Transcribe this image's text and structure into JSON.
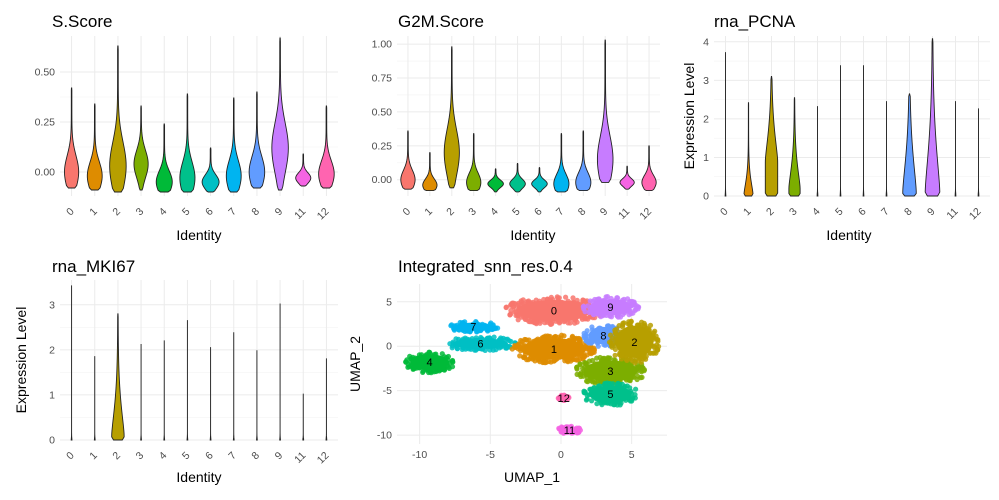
{
  "colors": {
    "0": "#F8766D",
    "1": "#DE8C00",
    "2": "#B79F00",
    "3": "#7CAE00",
    "4": "#00BA38",
    "5": "#00C08B",
    "6": "#00BFC4",
    "7": "#00B4F0",
    "8": "#619CFF",
    "9": "#C77CFF",
    "11": "#F564E3",
    "12": "#FF64B0"
  },
  "chart_data": [
    {
      "type": "violin",
      "title": "S.Score",
      "xlabel": "Identity",
      "ylabel": "",
      "categories": [
        "0",
        "1",
        "2",
        "3",
        "4",
        "5",
        "6",
        "7",
        "8",
        "9",
        "11",
        "12"
      ],
      "yticks": [
        "0.00",
        "0.25",
        "0.50"
      ],
      "ytick_values": [
        0,
        0.25,
        0.5
      ],
      "ylim": [
        -0.12,
        0.68
      ],
      "series": [
        {
          "cat": "0",
          "min": -0.08,
          "max": 0.42,
          "mode": 0.0,
          "width": 0.62
        },
        {
          "cat": "1",
          "min": -0.09,
          "max": 0.34,
          "mode": -0.02,
          "width": 0.65
        },
        {
          "cat": "2",
          "min": -0.1,
          "max": 0.63,
          "mode": 0.03,
          "width": 0.72
        },
        {
          "cat": "3",
          "min": -0.09,
          "max": 0.33,
          "mode": 0.04,
          "width": 0.62
        },
        {
          "cat": "4",
          "min": -0.1,
          "max": 0.24,
          "mode": -0.05,
          "width": 0.7
        },
        {
          "cat": "5",
          "min": -0.1,
          "max": 0.39,
          "mode": -0.03,
          "width": 0.66
        },
        {
          "cat": "6",
          "min": -0.1,
          "max": 0.12,
          "mode": -0.05,
          "width": 0.74
        },
        {
          "cat": "7",
          "min": -0.1,
          "max": 0.37,
          "mode": -0.02,
          "width": 0.65
        },
        {
          "cat": "8",
          "min": -0.08,
          "max": 0.4,
          "mode": 0.0,
          "width": 0.68
        },
        {
          "cat": "9",
          "min": -0.09,
          "max": 0.67,
          "mode": 0.12,
          "width": 0.72
        },
        {
          "cat": "11",
          "min": -0.07,
          "max": 0.09,
          "mode": -0.03,
          "width": 0.66
        },
        {
          "cat": "12",
          "min": -0.08,
          "max": 0.33,
          "mode": -0.01,
          "width": 0.68
        }
      ]
    },
    {
      "type": "violin",
      "title": "G2M.Score",
      "xlabel": "Identity",
      "ylabel": "",
      "categories": [
        "0",
        "1",
        "2",
        "3",
        "4",
        "5",
        "6",
        "7",
        "8",
        "9",
        "11",
        "12"
      ],
      "yticks": [
        "0.00",
        "0.25",
        "0.50",
        "0.75",
        "1.00"
      ],
      "ytick_values": [
        0,
        0.25,
        0.5,
        0.75,
        1.0
      ],
      "ylim": [
        -0.12,
        1.06
      ],
      "series": [
        {
          "cat": "0",
          "min": -0.07,
          "max": 0.36,
          "mode": 0.0,
          "width": 0.66
        },
        {
          "cat": "1",
          "min": -0.08,
          "max": 0.2,
          "mode": -0.04,
          "width": 0.66
        },
        {
          "cat": "2",
          "min": -0.06,
          "max": 0.98,
          "mode": 0.2,
          "width": 0.7
        },
        {
          "cat": "3",
          "min": -0.08,
          "max": 0.34,
          "mode": -0.02,
          "width": 0.66
        },
        {
          "cat": "4",
          "min": -0.09,
          "max": 0.08,
          "mode": -0.03,
          "width": 0.72
        },
        {
          "cat": "5",
          "min": -0.09,
          "max": 0.12,
          "mode": -0.03,
          "width": 0.72
        },
        {
          "cat": "6",
          "min": -0.09,
          "max": 0.09,
          "mode": -0.03,
          "width": 0.72
        },
        {
          "cat": "7",
          "min": -0.09,
          "max": 0.34,
          "mode": -0.03,
          "width": 0.7
        },
        {
          "cat": "8",
          "min": -0.08,
          "max": 0.36,
          "mode": -0.02,
          "width": 0.7
        },
        {
          "cat": "9",
          "min": -0.02,
          "max": 1.03,
          "mode": 0.15,
          "width": 0.72
        },
        {
          "cat": "11",
          "min": -0.07,
          "max": 0.1,
          "mode": -0.02,
          "width": 0.66
        },
        {
          "cat": "12",
          "min": -0.08,
          "max": 0.25,
          "mode": -0.02,
          "width": 0.66
        }
      ]
    },
    {
      "type": "violin",
      "title": "rna_PCNA",
      "xlabel": "Identity",
      "ylabel": "Expression Level",
      "categories": [
        "0",
        "1",
        "2",
        "3",
        "4",
        "5",
        "6",
        "7",
        "8",
        "9",
        "11",
        "12"
      ],
      "yticks": [
        "0",
        "1",
        "2",
        "3",
        "4"
      ],
      "ytick_values": [
        0,
        1,
        2,
        3,
        4
      ],
      "ylim": [
        0,
        4.15
      ],
      "series": [
        {
          "cat": "0",
          "min": 0,
          "max": 3.72,
          "mode": 0,
          "width": 0.05,
          "spread": 0.08
        },
        {
          "cat": "1",
          "min": 0,
          "max": 2.42,
          "mode": 0.05,
          "width": 0.4,
          "spread": 0.5
        },
        {
          "cat": "2",
          "min": 0,
          "max": 3.1,
          "mode": 0.9,
          "width": 0.55,
          "spread": 1.0
        },
        {
          "cat": "3",
          "min": 0,
          "max": 2.55,
          "mode": 0.2,
          "width": 0.5,
          "spread": 0.8
        },
        {
          "cat": "4",
          "min": 0,
          "max": 2.32,
          "mode": 0,
          "width": 0.05,
          "spread": 0.08
        },
        {
          "cat": "5",
          "min": 0,
          "max": 3.38,
          "mode": 0,
          "width": 0.05,
          "spread": 0.08
        },
        {
          "cat": "6",
          "min": 0,
          "max": 3.38,
          "mode": 0,
          "width": 0.05,
          "spread": 0.08
        },
        {
          "cat": "7",
          "min": 0,
          "max": 2.45,
          "mode": 0,
          "width": 0.05,
          "spread": 0.08
        },
        {
          "cat": "8",
          "min": 0,
          "max": 2.65,
          "mode": 0.1,
          "width": 0.6,
          "spread": 1.3
        },
        {
          "cat": "9",
          "min": 0,
          "max": 4.08,
          "mode": 0.1,
          "width": 0.65,
          "spread": 1.6
        },
        {
          "cat": "11",
          "min": 0,
          "max": 2.45,
          "mode": 0,
          "width": 0.05,
          "spread": 0.08
        },
        {
          "cat": "12",
          "min": 0,
          "max": 2.26,
          "mode": 0,
          "width": 0.05,
          "spread": 0.08
        }
      ]
    },
    {
      "type": "violin",
      "title": "rna_MKI67",
      "xlabel": "Identity",
      "ylabel": "Expression Level",
      "categories": [
        "0",
        "1",
        "2",
        "3",
        "4",
        "5",
        "6",
        "7",
        "8",
        "9",
        "11",
        "12"
      ],
      "yticks": [
        "0",
        "1",
        "2",
        "3"
      ],
      "ytick_values": [
        0,
        1,
        2,
        3
      ],
      "ylim": [
        0,
        3.55
      ],
      "series": [
        {
          "cat": "0",
          "min": 0,
          "max": 3.42,
          "mode": 0,
          "width": 0.05,
          "spread": 0.05
        },
        {
          "cat": "1",
          "min": 0,
          "max": 1.85,
          "mode": 0,
          "width": 0.05,
          "spread": 0.05
        },
        {
          "cat": "2",
          "min": 0,
          "max": 2.8,
          "mode": 0.1,
          "width": 0.55,
          "spread": 0.9
        },
        {
          "cat": "3",
          "min": 0,
          "max": 2.12,
          "mode": 0,
          "width": 0.05,
          "spread": 0.05
        },
        {
          "cat": "4",
          "min": 0,
          "max": 2.2,
          "mode": 0,
          "width": 0.05,
          "spread": 0.05
        },
        {
          "cat": "5",
          "min": 0,
          "max": 2.65,
          "mode": 0,
          "width": 0.05,
          "spread": 0.05
        },
        {
          "cat": "6",
          "min": 0,
          "max": 2.05,
          "mode": 0,
          "width": 0.05,
          "spread": 0.05
        },
        {
          "cat": "7",
          "min": 0,
          "max": 2.38,
          "mode": 0,
          "width": 0.05,
          "spread": 0.05
        },
        {
          "cat": "8",
          "min": 0,
          "max": 1.98,
          "mode": 0,
          "width": 0.05,
          "spread": 0.05
        },
        {
          "cat": "9",
          "min": 0,
          "max": 3.02,
          "mode": 0,
          "width": 0.05,
          "spread": 0.05
        },
        {
          "cat": "11",
          "min": 0,
          "max": 1.02,
          "mode": 0,
          "width": 0.05,
          "spread": 0.05
        },
        {
          "cat": "12",
          "min": 0,
          "max": 1.8,
          "mode": 0,
          "width": 0.05,
          "spread": 0.05
        }
      ]
    },
    {
      "type": "scatter",
      "title": "Integrated_snn_res.0.4",
      "xlabel": "UMAP_1",
      "ylabel": "UMAP_2",
      "xticks": [
        "-10",
        "-5",
        "0",
        "5"
      ],
      "xtick_values": [
        -10,
        -5,
        0,
        5
      ],
      "yticks": [
        "5",
        "0",
        "-5",
        "-10"
      ],
      "ytick_values": [
        5,
        0,
        -5,
        -10
      ],
      "xlim": [
        -11.6,
        7.5
      ],
      "ylim": [
        -11.0,
        7.0
      ],
      "clusters": [
        {
          "label": "0",
          "cx": -0.5,
          "cy": 4.0,
          "rx": 3.5,
          "ry": 1.6
        },
        {
          "label": "1",
          "cx": -0.5,
          "cy": -0.3,
          "rx": 3.0,
          "ry": 1.6
        },
        {
          "label": "2",
          "cx": 5.2,
          "cy": 0.5,
          "rx": 1.8,
          "ry": 2.4
        },
        {
          "label": "3",
          "cx": 3.5,
          "cy": -2.8,
          "rx": 2.5,
          "ry": 1.6
        },
        {
          "label": "4",
          "cx": -9.3,
          "cy": -1.8,
          "rx": 1.8,
          "ry": 1.2
        },
        {
          "label": "5",
          "cx": 3.5,
          "cy": -5.4,
          "rx": 2.0,
          "ry": 1.3
        },
        {
          "label": "6",
          "cx": -5.7,
          "cy": 0.3,
          "rx": 2.6,
          "ry": 0.8
        },
        {
          "label": "7",
          "cx": -6.2,
          "cy": 2.2,
          "rx": 1.8,
          "ry": 0.6
        },
        {
          "label": "8",
          "cx": 3.0,
          "cy": 1.2,
          "rx": 1.4,
          "ry": 1.3
        },
        {
          "label": "9",
          "cx": 3.5,
          "cy": 4.4,
          "rx": 2.0,
          "ry": 1.2
        },
        {
          "label": "11",
          "cx": 0.6,
          "cy": -9.4,
          "rx": 0.8,
          "ry": 0.5
        },
        {
          "label": "12",
          "cx": 0.2,
          "cy": -5.8,
          "rx": 0.4,
          "ry": 0.3
        }
      ]
    }
  ]
}
